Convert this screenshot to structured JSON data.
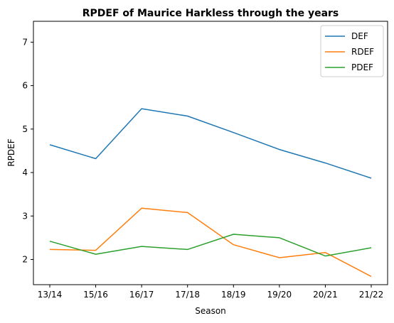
{
  "chart_data": {
    "type": "line",
    "title": "RPDEF of Maurice Harkless through the years",
    "xlabel": "Season",
    "ylabel": "RPDEF",
    "categories": [
      "13/14",
      "15/16",
      "16/17",
      "17/18",
      "18/19",
      "19/20",
      "20/21",
      "21/22"
    ],
    "y_ticks": [
      "2",
      "3",
      "4",
      "5",
      "6",
      "7"
    ],
    "ylim": [
      1.42,
      7.48
    ],
    "grid": false,
    "legend_position": "top-right",
    "series": [
      {
        "name": "DEF",
        "color": "#1f77b4",
        "values": [
          4.64,
          4.32,
          5.47,
          5.3,
          4.92,
          4.53,
          4.22,
          3.87
        ]
      },
      {
        "name": "RDEF",
        "color": "#ff7f0e",
        "values": [
          2.23,
          2.21,
          3.18,
          3.08,
          2.34,
          2.04,
          2.16,
          1.61
        ]
      },
      {
        "name": "PDEF",
        "color": "#2ca02c",
        "values": [
          2.42,
          2.12,
          2.3,
          2.23,
          2.58,
          2.5,
          2.08,
          2.27
        ]
      }
    ]
  }
}
